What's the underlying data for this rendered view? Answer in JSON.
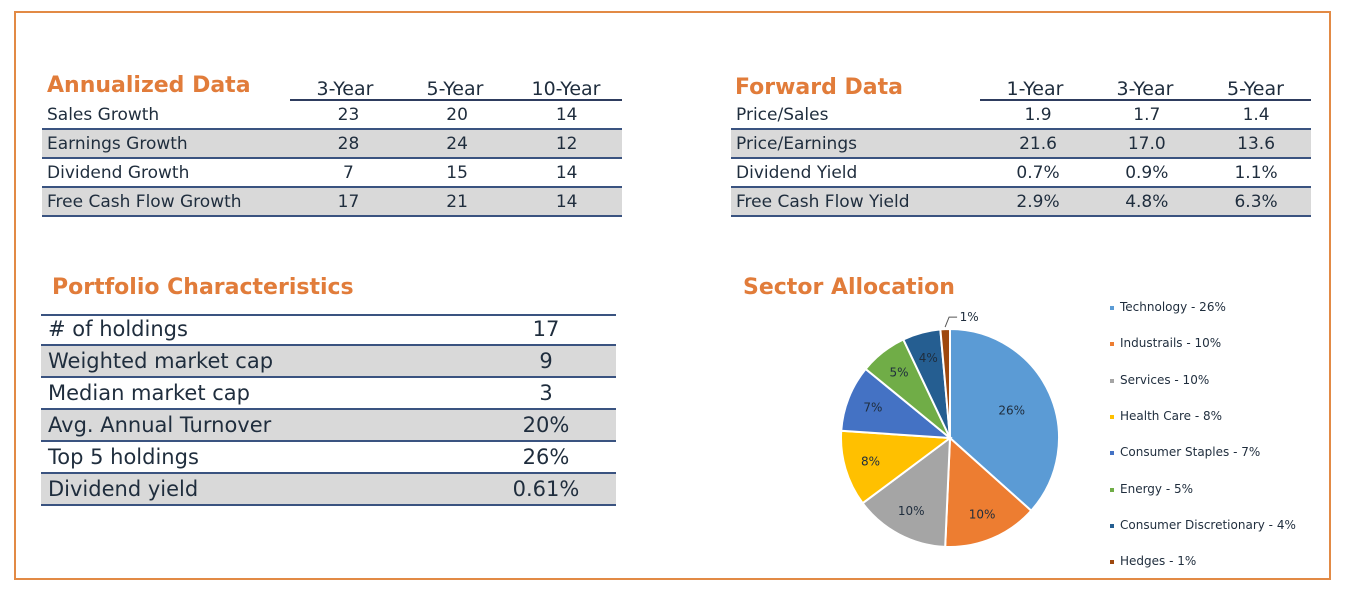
{
  "annualized": {
    "title": "Annualized Data",
    "columns": [
      "3-Year",
      "5-Year",
      "10-Year"
    ],
    "rows": [
      {
        "label": "Sales Growth",
        "values": [
          "23",
          "20",
          "14"
        ]
      },
      {
        "label": "Earnings Growth",
        "values": [
          "28",
          "24",
          "12"
        ]
      },
      {
        "label": "Dividend Growth",
        "values": [
          "7",
          "15",
          "14"
        ]
      },
      {
        "label": "Free Cash Flow Growth",
        "values": [
          "17",
          "21",
          "14"
        ]
      }
    ]
  },
  "forward": {
    "title": "Forward Data",
    "columns": [
      "1-Year",
      "3-Year",
      "5-Year"
    ],
    "rows": [
      {
        "label": "Price/Sales",
        "values": [
          "1.9",
          "1.7",
          "1.4"
        ]
      },
      {
        "label": "Price/Earnings",
        "values": [
          "21.6",
          "17.0",
          "13.6"
        ]
      },
      {
        "label": "Dividend Yield",
        "values": [
          "0.7%",
          "0.9%",
          "1.1%"
        ]
      },
      {
        "label": "Free Cash Flow Yield",
        "values": [
          "2.9%",
          "4.8%",
          "6.3%"
        ]
      }
    ]
  },
  "portfolio": {
    "title": "Portfolio Characteristics",
    "rows": [
      {
        "label": "# of holdings",
        "value": "17"
      },
      {
        "label": "Weighted market cap",
        "value": "9"
      },
      {
        "label": "Median market cap",
        "value": "3"
      },
      {
        "label": "Avg. Annual Turnover",
        "value": "20%"
      },
      {
        "label": "Top 5 holdings",
        "value": "26%"
      },
      {
        "label": "Dividend yield",
        "value": "0.61%"
      }
    ]
  },
  "chart_data": {
    "type": "pie",
    "title": "Sector Allocation",
    "slices": [
      {
        "label": "26%",
        "legend": "Technology - 26%",
        "value": 26,
        "color": "#5b9bd5"
      },
      {
        "label": "10%",
        "legend": "Industrails - 10%",
        "value": 10,
        "color": "#ed7d31"
      },
      {
        "label": "10%",
        "legend": "Services - 10%",
        "value": 10,
        "color": "#a5a5a5"
      },
      {
        "label": "8%",
        "legend": "Health Care - 8%",
        "value": 8,
        "color": "#ffc000"
      },
      {
        "label": "7%",
        "legend": "Consumer Staples - 7%",
        "value": 7,
        "color": "#4472c4"
      },
      {
        "label": "5%",
        "legend": "Energy - 5%",
        "value": 5,
        "color": "#70ad47"
      },
      {
        "label": "4%",
        "legend": "Consumer Discretionary - 4%",
        "value": 4,
        "color": "#255e91"
      },
      {
        "label": "1%",
        "legend": "Hedges - 1%",
        "value": 1,
        "color": "#9e480e"
      }
    ],
    "legend_position": "right"
  }
}
